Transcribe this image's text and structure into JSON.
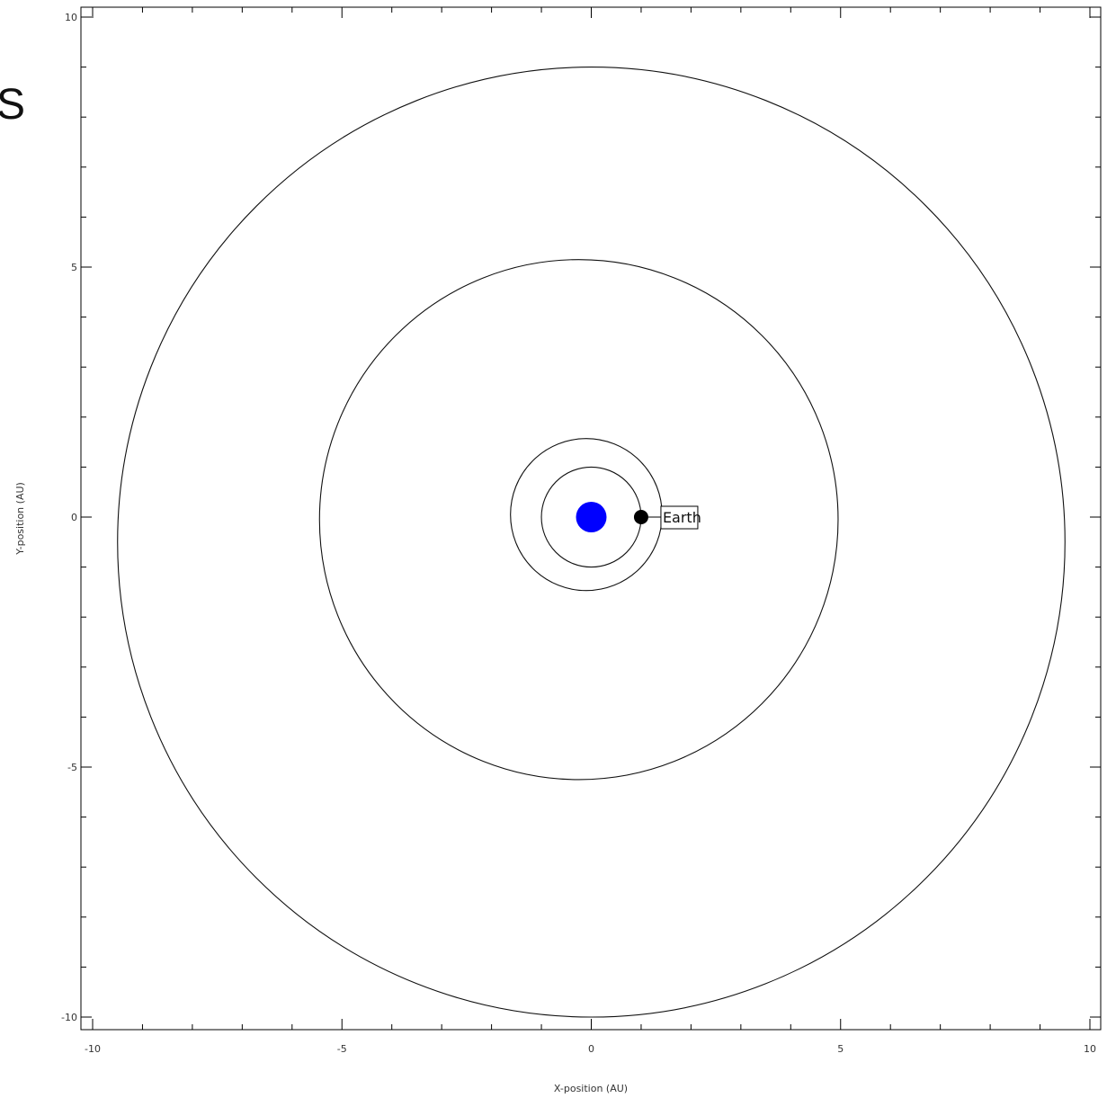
{
  "page": {
    "partial_text": "S"
  },
  "chart_data": {
    "type": "scatter",
    "title": "",
    "xlabel": "X-position (AU)",
    "ylabel": "Y-position (AU)",
    "xlim": [
      -10,
      10
    ],
    "ylim": [
      -10,
      10
    ],
    "xticks": [
      -10,
      -5,
      0,
      5,
      10
    ],
    "yticks": [
      -10,
      -5,
      0,
      5,
      10
    ],
    "xtick_labels": [
      "-10",
      "-5",
      "0",
      "5",
      "10"
    ],
    "ytick_labels": [
      "-10",
      "-5",
      "0",
      "5",
      "10"
    ],
    "minor_tick_step": 1,
    "grid": false,
    "legend": "none",
    "orbits": [
      {
        "cx": 0.0,
        "cy": 0.0,
        "rx": 1.0,
        "ry": 1.0
      },
      {
        "cx": -0.1,
        "cy": 0.05,
        "rx": 1.52,
        "ry": 1.52
      },
      {
        "cx": -0.25,
        "cy": -0.05,
        "rx": 5.2,
        "ry": 5.2
      },
      {
        "cx": 0.0,
        "cy": -0.5,
        "rx": 9.5,
        "ry": 9.5
      }
    ],
    "bodies": [
      {
        "name": "Sun",
        "x": 0,
        "y": 0,
        "color": "#0000ff"
      },
      {
        "name": "Earth",
        "x": 1.0,
        "y": 0.0,
        "color": "#000000"
      }
    ],
    "annotation": {
      "text": "Earth",
      "x": 1.0,
      "y": 0.0
    }
  }
}
